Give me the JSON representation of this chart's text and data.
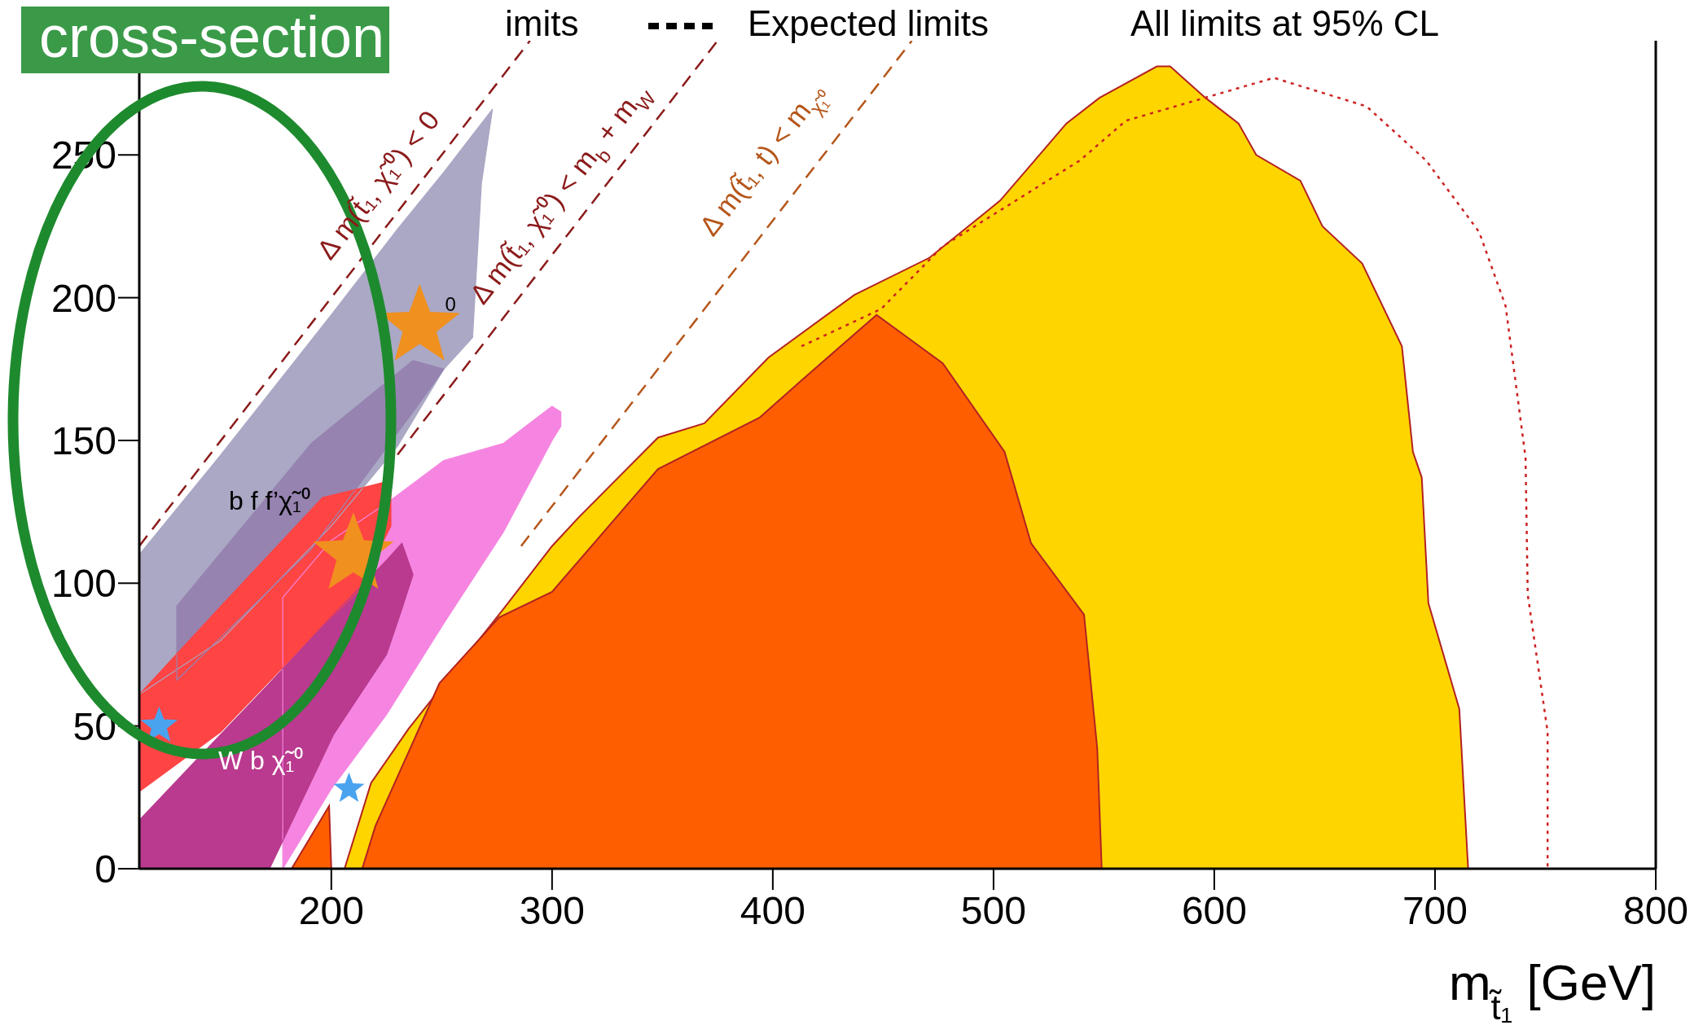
{
  "chart_data": {
    "type": "area",
    "xlabel": "m$_{t̃₁}$ [GeV]",
    "xlim": [
      113,
      800
    ],
    "xticks": [
      200,
      300,
      400,
      500,
      600,
      700,
      800
    ],
    "ylim": [
      0,
      290
    ],
    "yticks": [
      0,
      50,
      100,
      150,
      200,
      250
    ],
    "grid": false,
    "series": [
      {
        "color": "#ffd500",
        "x": [
          206,
          218,
          235,
          278,
          300,
          312,
          348,
          369,
          398,
          437,
          471,
          503,
          533,
          548,
          574,
          580,
          596,
          611,
          619,
          639,
          649,
          667,
          685,
          690,
          694,
          697,
          711,
          715
        ],
        "values": [
          0,
          30,
          49,
          91,
          113,
          123,
          151,
          156,
          179,
          201,
          214,
          234,
          261,
          270,
          281,
          281,
          270,
          261,
          250,
          241,
          225,
          212,
          183,
          146,
          137,
          93,
          56,
          0
        ]
      },
      {
        "color": "#ff5e00",
        "x": [
          214,
          220,
          249,
          276,
          300,
          348,
          394,
          413,
          447,
          477,
          505,
          517,
          541,
          547,
          549
        ],
        "values": [
          0,
          15,
          65,
          88,
          97,
          140,
          158,
          171,
          194,
          177,
          146,
          114,
          89,
          42,
          0
        ]
      },
      {
        "color": "#ff5e00",
        "x": [
          182,
          199,
          200
        ],
        "values": [
          0,
          22,
          0
        ]
      },
      {
        "color": "#f585e0",
        "x": [
          178,
          200,
          225,
          251,
          278,
          300,
          304,
          304,
          300,
          278,
          251,
          225,
          200,
          178,
          178
        ],
        "values": [
          95,
          115,
          128,
          143,
          149,
          162,
          160,
          155,
          150,
          118,
          86,
          54,
          28,
          0,
          95
        ]
      },
      {
        "color": "#aaa8c4",
        "x": [
          113,
          150,
          200,
          230,
          251,
          264,
          268,
          273,
          268,
          264,
          251,
          230,
          200,
          150,
          113,
          113
        ],
        "values": [
          110,
          145,
          194,
          224,
          244,
          257,
          261,
          266,
          240,
          186,
          175,
          148,
          120,
          80,
          61,
          110
        ]
      },
      {
        "color": "#9683b0",
        "x": [
          130,
          191,
          237,
          251,
          237,
          191,
          130,
          130
        ],
        "values": [
          92,
          149,
          178,
          175,
          160,
          112,
          66,
          92
        ]
      },
      {
        "color": "#ff4444",
        "x": [
          113,
          150,
          196,
          212,
          227,
          227,
          212,
          196,
          150,
          113,
          113
        ],
        "values": [
          61,
          92,
          130,
          133,
          136,
          120,
          97,
          85,
          48,
          27,
          61
        ]
      },
      {
        "color": "#b93a8e",
        "x": [
          113,
          140,
          172,
          201,
          225,
          232,
          237,
          232,
          225,
          201,
          172,
          113,
          113
        ],
        "values": [
          17,
          39,
          65,
          89,
          108,
          114,
          103,
          91,
          75,
          47,
          0,
          0,
          17
        ]
      },
      {
        "type": "line",
        "color": "#cc2222",
        "line_style": "dotted",
        "x": [
          413,
          449,
          477,
          539,
          560,
          627,
          669,
          696,
          720,
          732,
          741,
          742,
          751,
          751
        ],
        "values": [
          183,
          196,
          218,
          248,
          262,
          277,
          267,
          248,
          223,
          197,
          144,
          96,
          48,
          0
        ]
      },
      {
        "type": "line",
        "color": "#8b1a1a",
        "line_style": "dashed",
        "x": [
          113,
          290
        ],
        "values": [
          113,
          290
        ]
      },
      {
        "type": "line",
        "color": "#8b1a1a",
        "line_style": "dashed",
        "x": [
          230,
          375
        ],
        "values": [
          145,
          290
        ]
      },
      {
        "type": "line",
        "color": "#b5561a",
        "line_style": "dashed",
        "x": [
          286,
          463
        ],
        "values": [
          113,
          290
        ]
      }
    ],
    "annotations": [
      "Δ m(t̃₁, χ̃₁⁰) < 0",
      "Δ m(t̃₁, χ̃₁⁰) < m$_{b}$ + m$_{W}$",
      "Δ m(t̃₁, t) < m$_{χ̃₁⁰}$",
      "b f f’χ̃₁⁰",
      "W b χ̃₁⁰",
      "0",
      "cross-section",
      "imits",
      "Expected limits",
      "All limits at 95% CL"
    ]
  }
}
